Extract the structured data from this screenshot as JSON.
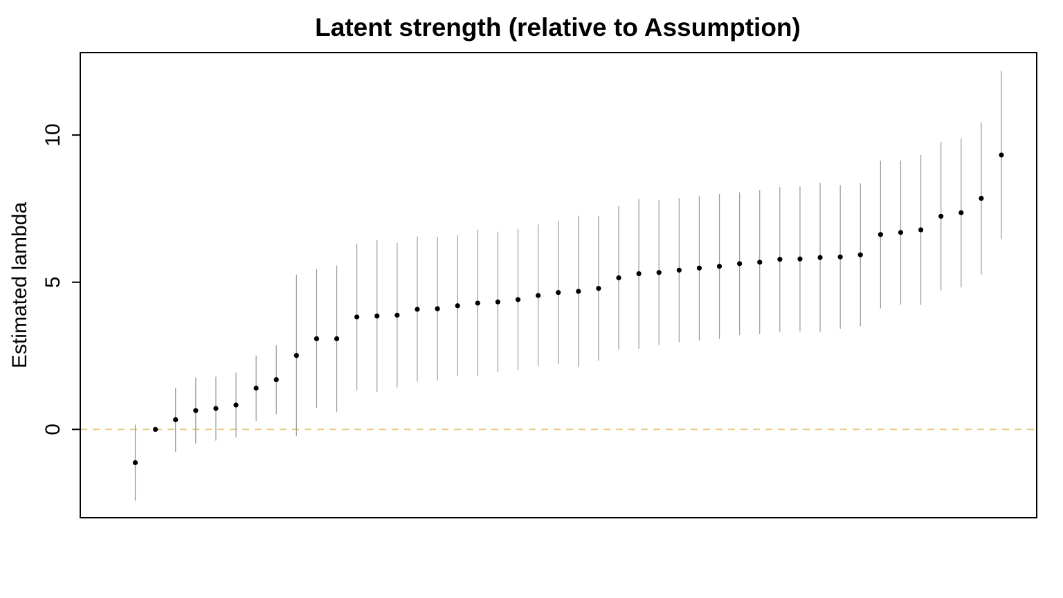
{
  "chart_data": {
    "type": "scatter",
    "title": "Latent strength (relative to Assumption)",
    "xlabel": "",
    "ylabel": "Estimated lambda",
    "ylim": [
      -3,
      12.8
    ],
    "yticks": [
      0,
      5,
      10
    ],
    "x_axis_shown": false,
    "grid": false,
    "legend": "none",
    "reference_line": {
      "y": 0,
      "style": "dashed",
      "color": "#E6C77A"
    },
    "colors": {
      "point": "#000000",
      "interval": "#999999",
      "frame": "#000000"
    },
    "series": [
      {
        "values": [
          {
            "x": 1,
            "y": -1.13,
            "lower": -2.42,
            "upper": 0.16
          },
          {
            "x": 2,
            "y": 0.0,
            "lower": 0.0,
            "upper": 0.0
          },
          {
            "x": 3,
            "y": 0.33,
            "lower": -0.76,
            "upper": 1.41
          },
          {
            "x": 4,
            "y": 0.64,
            "lower": -0.48,
            "upper": 1.76
          },
          {
            "x": 5,
            "y": 0.71,
            "lower": -0.38,
            "upper": 1.79
          },
          {
            "x": 6,
            "y": 0.83,
            "lower": -0.27,
            "upper": 1.93
          },
          {
            "x": 7,
            "y": 1.4,
            "lower": 0.29,
            "upper": 2.51
          },
          {
            "x": 8,
            "y": 1.69,
            "lower": 0.52,
            "upper": 2.86
          },
          {
            "x": 9,
            "y": 2.51,
            "lower": -0.23,
            "upper": 5.26
          },
          {
            "x": 10,
            "y": 3.08,
            "lower": 0.73,
            "upper": 5.44
          },
          {
            "x": 11,
            "y": 3.08,
            "lower": 0.59,
            "upper": 5.57
          },
          {
            "x": 12,
            "y": 3.82,
            "lower": 1.34,
            "upper": 6.31
          },
          {
            "x": 13,
            "y": 3.85,
            "lower": 1.28,
            "upper": 6.43
          },
          {
            "x": 14,
            "y": 3.88,
            "lower": 1.43,
            "upper": 6.34
          },
          {
            "x": 15,
            "y": 4.08,
            "lower": 1.62,
            "upper": 6.55
          },
          {
            "x": 16,
            "y": 4.1,
            "lower": 1.66,
            "upper": 6.55
          },
          {
            "x": 17,
            "y": 4.2,
            "lower": 1.81,
            "upper": 6.6
          },
          {
            "x": 18,
            "y": 4.29,
            "lower": 1.81,
            "upper": 6.78
          },
          {
            "x": 19,
            "y": 4.33,
            "lower": 1.95,
            "upper": 6.72
          },
          {
            "x": 20,
            "y": 4.41,
            "lower": 2.01,
            "upper": 6.81
          },
          {
            "x": 21,
            "y": 4.55,
            "lower": 2.15,
            "upper": 6.96
          },
          {
            "x": 22,
            "y": 4.65,
            "lower": 2.22,
            "upper": 7.08
          },
          {
            "x": 23,
            "y": 4.69,
            "lower": 2.12,
            "upper": 7.26
          },
          {
            "x": 24,
            "y": 4.79,
            "lower": 2.34,
            "upper": 7.25
          },
          {
            "x": 25,
            "y": 5.15,
            "lower": 2.72,
            "upper": 7.58
          },
          {
            "x": 26,
            "y": 5.29,
            "lower": 2.74,
            "upper": 7.83
          },
          {
            "x": 27,
            "y": 5.33,
            "lower": 2.87,
            "upper": 7.79
          },
          {
            "x": 28,
            "y": 5.41,
            "lower": 2.96,
            "upper": 7.86
          },
          {
            "x": 29,
            "y": 5.48,
            "lower": 3.02,
            "upper": 7.93
          },
          {
            "x": 30,
            "y": 5.54,
            "lower": 3.07,
            "upper": 8.0
          },
          {
            "x": 31,
            "y": 5.63,
            "lower": 3.2,
            "upper": 8.05
          },
          {
            "x": 32,
            "y": 5.68,
            "lower": 3.23,
            "upper": 8.12
          },
          {
            "x": 33,
            "y": 5.78,
            "lower": 3.32,
            "upper": 8.24
          },
          {
            "x": 34,
            "y": 5.79,
            "lower": 3.33,
            "upper": 8.25
          },
          {
            "x": 35,
            "y": 5.84,
            "lower": 3.31,
            "upper": 8.38
          },
          {
            "x": 36,
            "y": 5.86,
            "lower": 3.42,
            "upper": 8.3
          },
          {
            "x": 37,
            "y": 5.93,
            "lower": 3.5,
            "upper": 8.36
          },
          {
            "x": 38,
            "y": 6.62,
            "lower": 4.11,
            "upper": 9.13
          },
          {
            "x": 39,
            "y": 6.69,
            "lower": 4.24,
            "upper": 9.13
          },
          {
            "x": 40,
            "y": 6.78,
            "lower": 4.23,
            "upper": 9.32
          },
          {
            "x": 41,
            "y": 7.24,
            "lower": 4.72,
            "upper": 9.77
          },
          {
            "x": 42,
            "y": 7.36,
            "lower": 4.82,
            "upper": 9.89
          },
          {
            "x": 43,
            "y": 7.85,
            "lower": 5.26,
            "upper": 10.43
          },
          {
            "x": 44,
            "y": 9.32,
            "lower": 6.47,
            "upper": 12.18
          }
        ]
      }
    ]
  }
}
